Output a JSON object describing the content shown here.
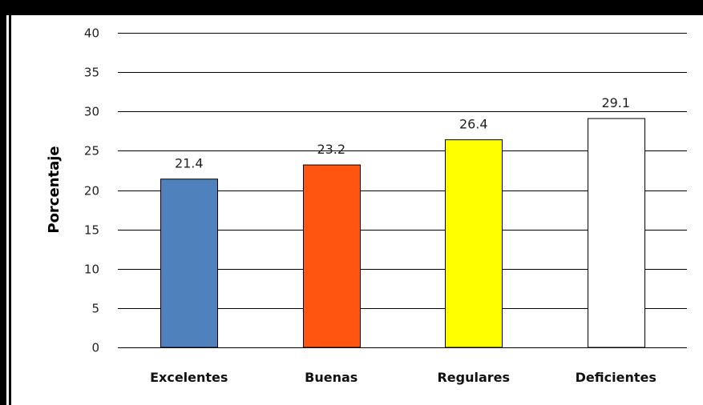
{
  "chart_data": {
    "type": "bar",
    "title": "",
    "xlabel": "",
    "ylabel": "Porcentaje",
    "categories": [
      "Excelentes",
      "Buenas",
      "Regulares",
      "Deficientes"
    ],
    "values": [
      21.4,
      23.2,
      26.4,
      29.1
    ],
    "data_labels": [
      "21.4",
      "23.2",
      "26.4",
      "29.1"
    ],
    "bar_colors": [
      "#4F81BD",
      "#FF5511",
      "#FFFF00",
      "#FFFFFF"
    ],
    "ylim": [
      0,
      40
    ],
    "yticks": [
      0,
      5,
      10,
      15,
      20,
      25,
      30,
      35,
      40
    ],
    "grid": true,
    "legend": "none"
  },
  "colors": {
    "frame": "#000000",
    "gridline": "#000000",
    "bar_outline": "#000000"
  }
}
